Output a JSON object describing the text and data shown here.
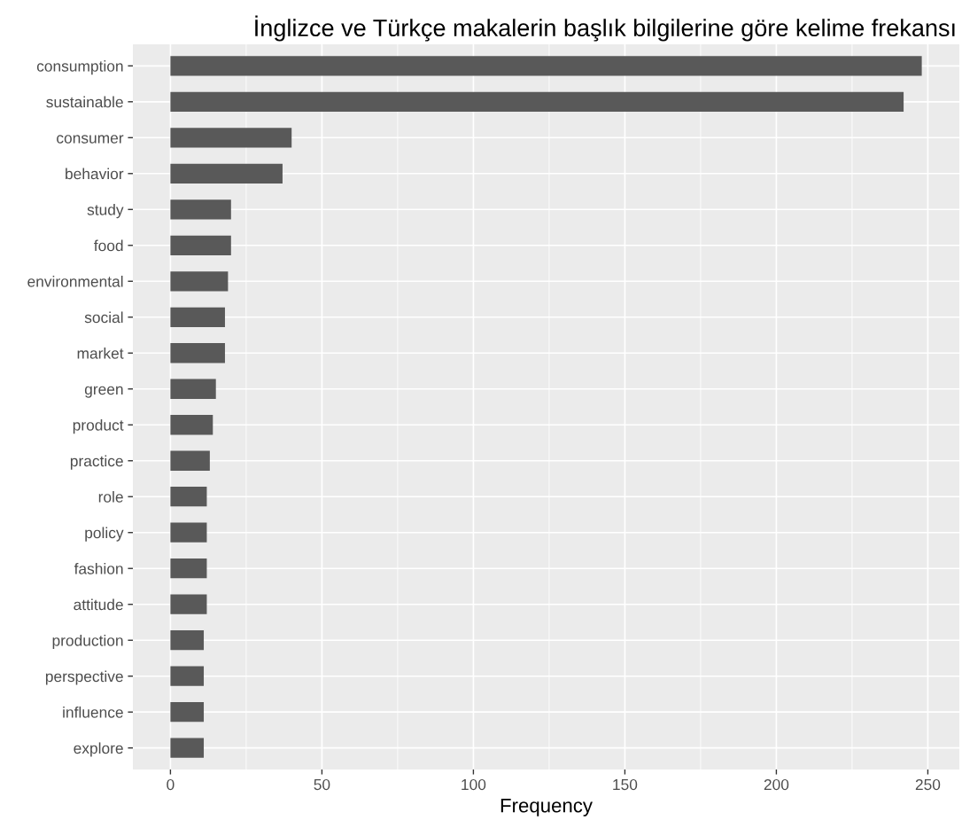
{
  "chart_data": {
    "type": "bar",
    "orientation": "horizontal",
    "title": "İnglizce ve Türkçe makalerin başlık bilgilerine göre kelime frekansı",
    "xlabel": "Frequency",
    "categories": [
      "consumption",
      "sustainable",
      "consumer",
      "behavior",
      "study",
      "food",
      "environmental",
      "social",
      "market",
      "green",
      "product",
      "practice",
      "role",
      "policy",
      "fashion",
      "attitude",
      "production",
      "perspective",
      "influence",
      "explore"
    ],
    "values": [
      248,
      242,
      40,
      37,
      20,
      20,
      19,
      18,
      18,
      15,
      14,
      13,
      12,
      12,
      12,
      12,
      11,
      11,
      11,
      11
    ],
    "color": "#595959",
    "xlim": [
      -12.4,
      260.4
    ],
    "xticks": [
      0,
      50,
      100,
      150,
      200,
      250
    ],
    "grid": true
  }
}
